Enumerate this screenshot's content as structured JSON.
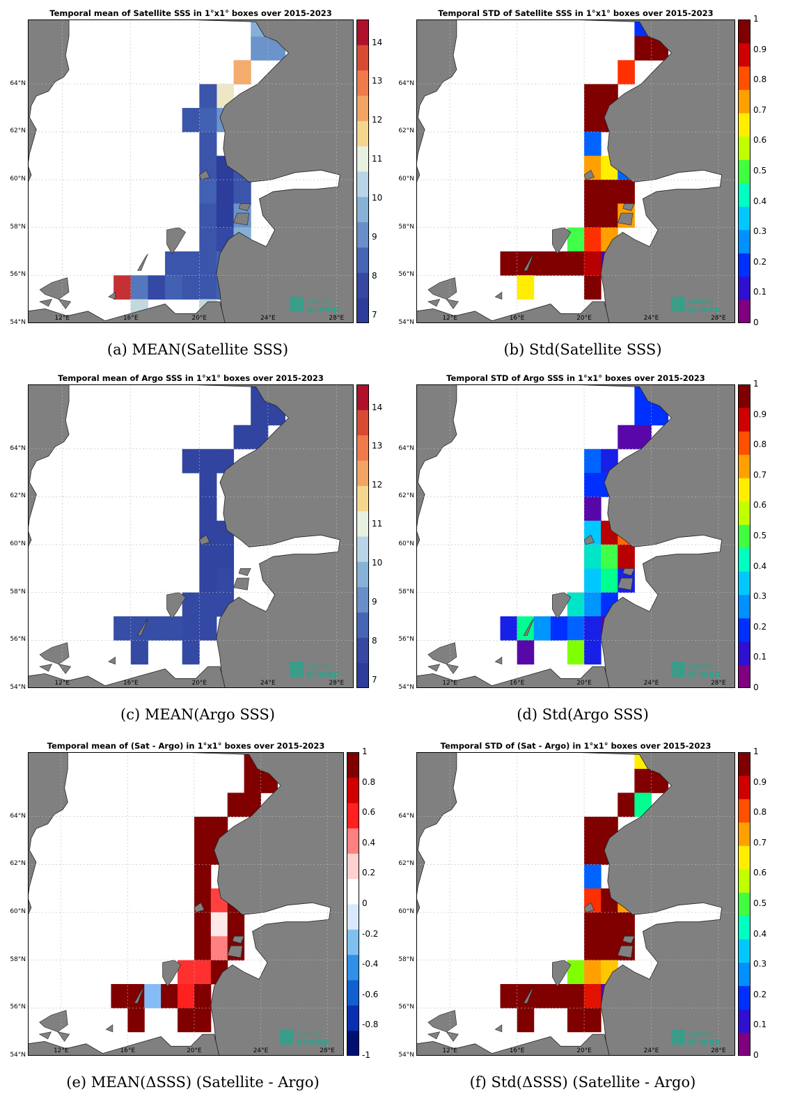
{
  "axes": {
    "lat_labels": [
      "54°N",
      "56°N",
      "58°N",
      "60°N",
      "62°N",
      "64°N"
    ],
    "lon_labels": [
      "12°E",
      "16°E",
      "20°E",
      "24°E",
      "28°E"
    ]
  },
  "logo": {
    "line1": "salinity",
    "line2": "pi-mep"
  },
  "colors": {
    "land": "#808080",
    "sea": "#ffffff",
    "logo": "#2aa38c"
  },
  "panels": [
    {
      "id": "a",
      "title": "Temporal mean of Satellite SSS in 1°x1° boxes over 2015-2023",
      "caption": "(a) MEAN(Satellite SSS)",
      "colorbar": {
        "ticks": [
          "7",
          "8",
          "9",
          "10",
          "11",
          "12",
          "13",
          "14"
        ],
        "scale": "mean"
      }
    },
    {
      "id": "b",
      "title": "Temporal STD of Satellite SSS in 1°x1° boxes over 2015-2023",
      "caption": "(b) Std(Satellite SSS)",
      "colorbar": {
        "ticks": [
          "0",
          "0.1",
          "0.2",
          "0.3",
          "0.4",
          "0.5",
          "0.6",
          "0.7",
          "0.8",
          "0.9",
          "1"
        ],
        "scale": "std"
      }
    },
    {
      "id": "c",
      "title": "Temporal mean of Argo SSS in 1°x1° boxes over 2015-2023",
      "caption": "(c) MEAN(Argo SSS)",
      "colorbar": {
        "ticks": [
          "7",
          "8",
          "9",
          "10",
          "11",
          "12",
          "13",
          "14"
        ],
        "scale": "mean"
      }
    },
    {
      "id": "d",
      "title": "Temporal STD of Argo SSS in 1°x1° boxes over 2015-2023",
      "caption": "(d) Std(Argo SSS)",
      "colorbar": {
        "ticks": [
          "0",
          "0.1",
          "0.2",
          "0.3",
          "0.4",
          "0.5",
          "0.6",
          "0.7",
          "0.8",
          "0.9",
          "1"
        ],
        "scale": "std"
      }
    },
    {
      "id": "e",
      "title": "Temporal mean of (Sat - Argo) in 1°x1° boxes over 2015-2023",
      "caption": "(e) MEAN(ΔSSS) (Satellite - Argo)",
      "colorbar": {
        "ticks": [
          "-1",
          "-0.8",
          "-0.6",
          "-0.4",
          "-0.2",
          "0",
          "0.2",
          "0.4",
          "0.6",
          "0.8",
          "1"
        ],
        "scale": "diff"
      }
    },
    {
      "id": "f",
      "title": "Temporal STD of (Sat - Argo) in 1°x1° boxes over 2015-2023",
      "caption": "(f) Std(ΔSSS) (Satellite - Argo)",
      "colorbar": {
        "ticks": [
          "0",
          "0.1",
          "0.2",
          "0.3",
          "0.4",
          "0.5",
          "0.6",
          "0.7",
          "0.8",
          "0.9",
          "1"
        ],
        "scale": "std"
      }
    }
  ],
  "cells": {
    "a": [
      [
        13,
        65,
        9.5
      ],
      [
        14,
        65,
        9.5
      ],
      [
        13,
        66,
        10
      ],
      [
        14,
        66,
        9.4
      ],
      [
        12,
        64,
        12
      ],
      [
        11,
        63,
        11
      ],
      [
        10,
        63,
        8
      ],
      [
        11,
        62,
        9.5
      ],
      [
        10,
        62,
        8.5
      ],
      [
        9,
        62,
        8
      ],
      [
        10,
        61,
        8
      ],
      [
        10,
        60,
        8
      ],
      [
        11,
        60,
        7
      ],
      [
        12,
        60,
        8
      ],
      [
        10,
        59,
        8.5
      ],
      [
        11,
        59,
        7
      ],
      [
        12,
        59,
        8
      ],
      [
        10,
        58,
        8
      ],
      [
        11,
        58,
        7
      ],
      [
        12,
        58,
        9.5
      ],
      [
        10,
        57,
        8
      ],
      [
        11,
        57,
        7.5
      ],
      [
        12,
        57,
        10
      ],
      [
        8,
        56,
        8
      ],
      [
        9,
        56,
        8
      ],
      [
        10,
        56,
        8
      ],
      [
        11,
        56,
        8.5
      ],
      [
        5,
        55,
        14
      ],
      [
        6,
        55,
        9
      ],
      [
        7,
        55,
        7.5
      ],
      [
        8,
        55,
        8.5
      ],
      [
        9,
        55,
        8
      ],
      [
        10,
        55,
        8
      ],
      [
        11,
        55,
        8.5
      ],
      [
        6,
        54,
        10.5
      ],
      [
        10,
        54,
        10.5
      ]
    ],
    "b": [
      [
        13,
        66,
        0.2
      ],
      [
        13,
        65,
        1
      ],
      [
        14,
        65,
        1
      ],
      [
        12,
        64,
        0.85
      ],
      [
        10,
        63,
        1
      ],
      [
        11,
        63,
        1
      ],
      [
        10,
        62,
        1
      ],
      [
        11,
        62,
        1
      ],
      [
        10,
        61,
        0.25
      ],
      [
        10,
        60,
        0.75
      ],
      [
        11,
        60,
        0.65
      ],
      [
        12,
        60,
        0.25
      ],
      [
        10,
        59,
        1
      ],
      [
        11,
        59,
        1
      ],
      [
        12,
        59,
        1
      ],
      [
        10,
        58,
        1
      ],
      [
        11,
        58,
        1
      ],
      [
        12,
        58,
        0.75
      ],
      [
        9,
        57,
        0.5
      ],
      [
        10,
        57,
        0.85
      ],
      [
        11,
        57,
        0.75
      ],
      [
        5,
        56,
        1
      ],
      [
        6,
        56,
        1
      ],
      [
        7,
        56,
        1
      ],
      [
        8,
        56,
        1
      ],
      [
        9,
        56,
        1
      ],
      [
        10,
        56,
        0.95
      ],
      [
        11,
        56,
        0.05
      ],
      [
        6,
        55,
        0.65
      ],
      [
        10,
        55,
        1
      ]
    ],
    "c": [
      [
        13,
        66,
        7.3
      ],
      [
        14,
        66,
        7.3
      ],
      [
        13,
        65,
        7.3
      ],
      [
        14,
        65,
        7.3
      ],
      [
        12,
        64,
        7.3
      ],
      [
        13,
        64,
        7.3
      ],
      [
        10,
        63,
        7.3
      ],
      [
        11,
        63,
        7.3
      ],
      [
        9,
        63,
        7.3
      ],
      [
        10,
        62,
        7.3
      ],
      [
        10,
        61,
        7.3
      ],
      [
        10,
        60,
        7.3
      ],
      [
        11,
        60,
        7.3
      ],
      [
        10,
        59,
        7.3
      ],
      [
        11,
        59,
        7.3
      ],
      [
        10,
        58,
        7.3
      ],
      [
        11,
        58,
        7.5
      ],
      [
        10,
        57,
        7.5
      ],
      [
        11,
        57,
        7.5
      ],
      [
        9,
        57,
        7.5
      ],
      [
        9,
        56,
        7.5
      ],
      [
        10,
        56,
        7.5
      ],
      [
        5,
        56,
        7.7
      ],
      [
        6,
        56,
        7.7
      ],
      [
        7,
        56,
        7.7
      ],
      [
        8,
        56,
        7.7
      ],
      [
        6,
        55,
        7.5
      ],
      [
        9,
        55,
        7.5
      ]
    ],
    "d": [
      [
        13,
        66,
        0.2
      ],
      [
        14,
        66,
        0.2
      ],
      [
        13,
        65,
        0.2
      ],
      [
        14,
        65,
        0.2
      ],
      [
        12,
        64,
        0.05
      ],
      [
        13,
        64,
        0.05
      ],
      [
        10,
        63,
        0.25
      ],
      [
        11,
        63,
        0.15
      ],
      [
        10,
        62,
        0.2
      ],
      [
        11,
        62,
        0.2
      ],
      [
        10,
        61,
        0.05
      ],
      [
        10,
        60,
        0.35
      ],
      [
        11,
        60,
        0.95
      ],
      [
        12,
        60,
        0.8
      ],
      [
        10,
        59,
        0.4
      ],
      [
        11,
        59,
        0.5
      ],
      [
        12,
        59,
        0.95
      ],
      [
        10,
        58,
        0.35
      ],
      [
        11,
        58,
        0.45
      ],
      [
        12,
        58,
        0.15
      ],
      [
        9,
        57,
        0.4
      ],
      [
        10,
        57,
        0.3
      ],
      [
        11,
        57,
        0.2
      ],
      [
        5,
        56,
        0.15
      ],
      [
        6,
        56,
        0.45
      ],
      [
        7,
        56,
        0.3
      ],
      [
        8,
        56,
        0.2
      ],
      [
        9,
        56,
        0.25
      ],
      [
        10,
        56,
        0.15
      ],
      [
        11,
        56,
        0.05
      ],
      [
        6,
        55,
        0.05
      ],
      [
        9,
        55,
        0.55
      ],
      [
        10,
        55,
        0.15
      ]
    ],
    "e": [
      [
        13,
        66,
        1
      ],
      [
        14,
        66,
        1
      ],
      [
        13,
        65,
        1
      ],
      [
        14,
        65,
        1
      ],
      [
        12,
        64,
        1
      ],
      [
        13,
        64,
        1
      ],
      [
        10,
        63,
        1
      ],
      [
        11,
        63,
        1
      ],
      [
        10,
        62,
        1
      ],
      [
        11,
        62,
        1
      ],
      [
        10,
        61,
        1
      ],
      [
        10,
        60,
        1
      ],
      [
        11,
        60,
        0.5
      ],
      [
        12,
        60,
        1
      ],
      [
        10,
        59,
        1
      ],
      [
        11,
        59,
        0.05
      ],
      [
        12,
        59,
        1
      ],
      [
        10,
        58,
        1
      ],
      [
        11,
        58,
        0.3
      ],
      [
        12,
        58,
        1
      ],
      [
        9,
        57,
        0.55
      ],
      [
        10,
        57,
        0.55
      ],
      [
        11,
        57,
        1
      ],
      [
        5,
        56,
        1
      ],
      [
        6,
        56,
        1
      ],
      [
        7,
        56,
        -0.15
      ],
      [
        8,
        56,
        1
      ],
      [
        9,
        56,
        0.6
      ],
      [
        10,
        56,
        1
      ],
      [
        6,
        55,
        1
      ],
      [
        9,
        55,
        1
      ],
      [
        10,
        55,
        1
      ]
    ],
    "f": [
      [
        13,
        66,
        0.65
      ],
      [
        13,
        65,
        1
      ],
      [
        14,
        65,
        1
      ],
      [
        12,
        64,
        1
      ],
      [
        13,
        64,
        0.45
      ],
      [
        10,
        63,
        1
      ],
      [
        11,
        63,
        1
      ],
      [
        10,
        62,
        1
      ],
      [
        11,
        62,
        1
      ],
      [
        10,
        61,
        0.25
      ],
      [
        10,
        60,
        0.85
      ],
      [
        11,
        60,
        1
      ],
      [
        12,
        60,
        0.75
      ],
      [
        10,
        59,
        1
      ],
      [
        11,
        59,
        1
      ],
      [
        12,
        59,
        1
      ],
      [
        10,
        58,
        1
      ],
      [
        11,
        58,
        1
      ],
      [
        12,
        58,
        1
      ],
      [
        9,
        57,
        0.55
      ],
      [
        10,
        57,
        0.75
      ],
      [
        11,
        57,
        0.7
      ],
      [
        5,
        56,
        1
      ],
      [
        6,
        56,
        1
      ],
      [
        7,
        56,
        1
      ],
      [
        8,
        56,
        1
      ],
      [
        9,
        56,
        1
      ],
      [
        10,
        56,
        0.9
      ],
      [
        11,
        56,
        0.05
      ],
      [
        6,
        55,
        1
      ],
      [
        9,
        55,
        1
      ],
      [
        10,
        55,
        1
      ]
    ]
  }
}
